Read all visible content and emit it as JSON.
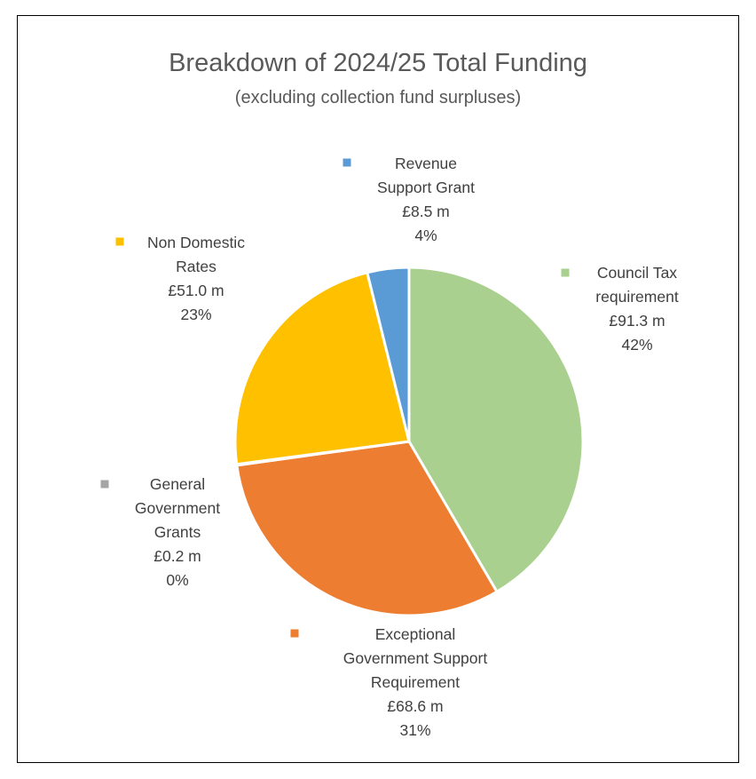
{
  "chart_data": {
    "type": "pie",
    "title": "Breakdown of 2024/25 Total Funding",
    "subtitle": "(excluding collection fund surpluses)",
    "slices": [
      {
        "name_lines": [
          "Council Tax",
          "requirement"
        ],
        "value_text": "£91.3 m",
        "percent_text": "42%",
        "value": 91.3,
        "color": "#A9D08E"
      },
      {
        "name_lines": [
          "Exceptional",
          "Government Support",
          "Requirement"
        ],
        "value_text": "£68.6 m",
        "percent_text": "31%",
        "value": 68.6,
        "color": "#ED7D31"
      },
      {
        "name_lines": [
          "General",
          "Government",
          "Grants"
        ],
        "value_text": "£0.2 m",
        "percent_text": "0%",
        "value": 0.2,
        "color": "#A5A5A5"
      },
      {
        "name_lines": [
          "Non Domestic",
          "Rates"
        ],
        "value_text": "£51.0 m",
        "percent_text": "23%",
        "value": 51.0,
        "color": "#FFC000"
      },
      {
        "name_lines": [
          "Revenue",
          "Support Grant"
        ],
        "value_text": "£8.5 m",
        "percent_text": "4%",
        "value": 8.5,
        "color": "#5B9BD5"
      }
    ]
  }
}
